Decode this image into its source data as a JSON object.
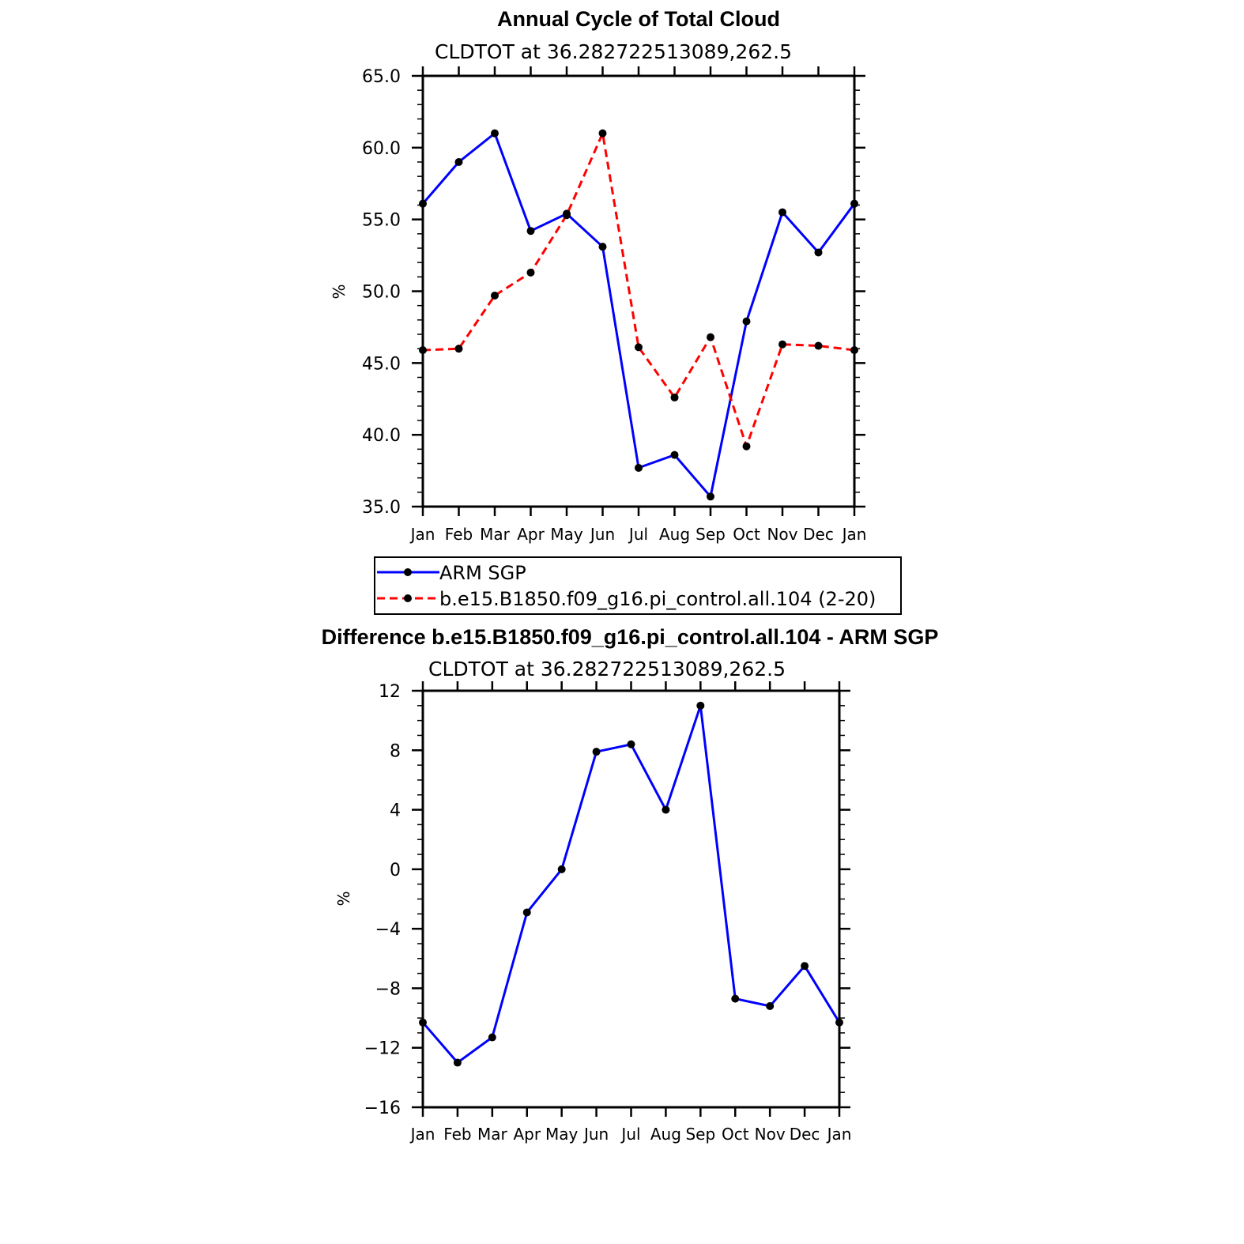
{
  "chart_data": [
    {
      "type": "line",
      "title": "Annual Cycle of Total Cloud",
      "subtitle": "CLDTOT at 36.282722513089,262.5",
      "ylabel": "%",
      "ylim": [
        35,
        65
      ],
      "yticks": [
        "35.0",
        "40.0",
        "45.0",
        "50.0",
        "55.0",
        "60.0",
        "65.0"
      ],
      "categories": [
        "Jan",
        "Feb",
        "Mar",
        "Apr",
        "May",
        "Jun",
        "Jul",
        "Aug",
        "Sep",
        "Oct",
        "Nov",
        "Dec",
        "Jan"
      ],
      "series": [
        {
          "name": "ARM SGP",
          "color": "#0000ff",
          "dash": "solid",
          "values": [
            56.1,
            59.0,
            61.0,
            54.2,
            55.4,
            53.1,
            37.7,
            38.6,
            35.7,
            47.9,
            55.5,
            52.7,
            56.1
          ]
        },
        {
          "name": "b.e15.B1850.f09_g16.pi_control.all.104 (2-20)",
          "color": "#ff0000",
          "dash": "dashed",
          "values": [
            45.9,
            46.0,
            49.7,
            51.3,
            55.3,
            61.0,
            46.1,
            42.6,
            46.8,
            39.2,
            46.3,
            46.2,
            45.9
          ]
        }
      ],
      "legend_position": "bottom"
    },
    {
      "type": "line",
      "title": "Difference b.e15.B1850.f09_g16.pi_control.all.104 - ARM SGP",
      "subtitle": "CLDTOT at 36.282722513089,262.5",
      "ylabel": "%",
      "ylim": [
        -16,
        12
      ],
      "yticks": [
        "−16",
        "−12",
        "−8",
        "−4",
        "0",
        "4",
        "8",
        "12"
      ],
      "categories": [
        "Jan",
        "Feb",
        "Mar",
        "Apr",
        "May",
        "Jun",
        "Jul",
        "Aug",
        "Sep",
        "Oct",
        "Nov",
        "Dec",
        "Jan"
      ],
      "series": [
        {
          "color": "#0000ff",
          "dash": "solid",
          "values": [
            -10.3,
            -13.0,
            -11.3,
            -2.9,
            0.0,
            7.9,
            8.4,
            4.0,
            11.0,
            -8.7,
            -9.2,
            -6.5,
            -10.3
          ]
        }
      ]
    }
  ]
}
